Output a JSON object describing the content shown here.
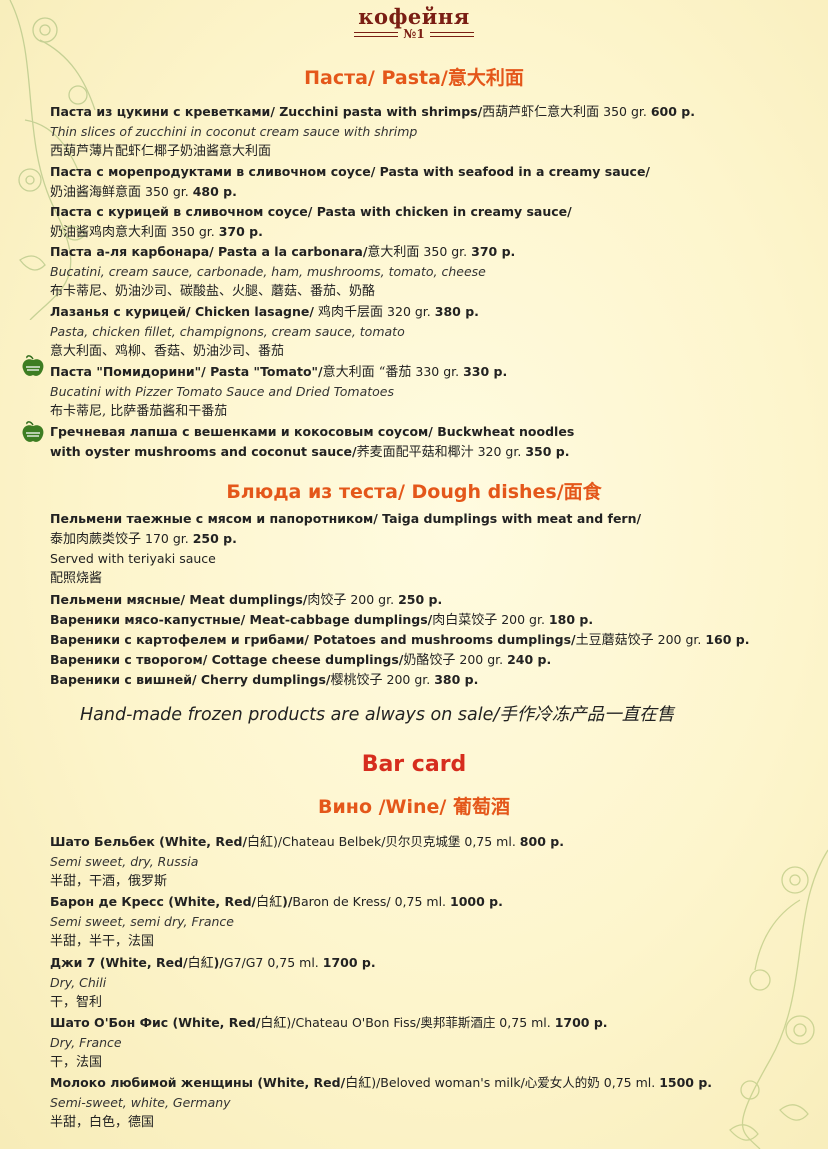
{
  "logo": {
    "word": "кофейня",
    "number": "№1"
  },
  "pasta": {
    "title": "Паста/ Pasta/意大利面",
    "items": [
      {
        "head": "Паста из цукини с креветками/ Zucchini pasta with shrimps/",
        "head_cn": "西葫芦虾仁意大利面",
        "weight": " 350 gr. ",
        "price": "600 р.",
        "desc": "Thin slices of zucchini in coconut cream sauce with shrimp",
        "cn": "西葫芦薄片配虾仁椰子奶油酱意大利面"
      },
      {
        "head": "Паста с морепродуктами в сливочном соусе/ Pasta with seafood in a creamy sauce/",
        "head_cn": "奶油酱海鲜意面",
        "weight": " 350 gr. ",
        "price": "480 р."
      },
      {
        "head": "Паста с курицей в сливочном соусе/ Pasta with chicken in creamy sauce/",
        "head_cn": "奶油酱鸡肉意大利面",
        "weight": " 350 gr. ",
        "price": "370 р."
      },
      {
        "head": "Паста а-ля карбонара/ Pasta a la carbonara/",
        "head_cn": "意大利面",
        "weight": " 350 gr. ",
        "price": "370 р.",
        "desc": "Bucatini, cream sauce, carbonade, ham, mushrooms, tomato, cheese",
        "cn": "布卡蒂尼、奶油沙司、碳酸盐、火腿、蘑菇、番茄、奶酪"
      },
      {
        "head": "Лазанья с курицей/ Chicken lasagne/",
        "head_cn": " 鸡肉千层面",
        "weight": " 320 gr. ",
        "price": "380 р.",
        "desc": "Pasta, chicken fillet, champignons, cream sauce, tomato",
        "cn": "意大利面、鸡柳、香菇、奶油沙司、番茄"
      },
      {
        "head": "Паста \"Помидорини\"/ Pasta \"Tomato\"/",
        "head_cn": "意大利面 “番茄",
        "weight": " 330 gr. ",
        "price": "330 р.",
        "desc": "Bucatini with Pizzer Tomato Sauce and Dried Tomatoes",
        "cn": "布卡蒂尼, 比萨番茄酱和干番茄"
      },
      {
        "head": "Гречневая лапша с вешенками и кокосовым соусом/ Buckwheat noodles",
        "head2": " with oyster mushrooms and coconut sauce/",
        "head_cn": "荞麦面配平菇和椰汁",
        "weight": " 320 gr. ",
        "price": "350 р."
      }
    ]
  },
  "dough": {
    "title": "Блюда из теста/ Dough dishes/面食",
    "items": [
      {
        "head": "Пельмени таежные с мясом и папоротником/ Taiga dumplings with meat and fern/",
        "cn_line": "泰加肉蕨类饺子",
        "weight": " 170 gr. ",
        "price": "250 р.",
        "desc": "Served with teriyaki sauce",
        "cn": "配照烧酱"
      },
      {
        "head": "Пельмени мясные/ Meat dumplings/",
        "head_cn": "肉饺子",
        "weight": " 200 gr. ",
        "price": "250 р."
      },
      {
        "head": "Вареники мясо-капустные/ Meat-cabbage dumplings/",
        "head_cn": "肉白菜饺子",
        "weight": " 200 gr. ",
        "price": "180 р."
      },
      {
        "head": "Вареники с картофелем и грибами/ Potatoes and mushrooms dumplings/",
        "head_cn": "土豆蘑菇饺子",
        "weight": " 200 gr. ",
        "price": "160 р."
      },
      {
        "head": "Вареники с творогом/ Cottage cheese dumplings/",
        "head_cn": "奶酪饺子",
        "weight": " 200 gr. ",
        "price": "240 р."
      },
      {
        "head": "Вареники с вишней/ Cherry dumplings/",
        "head_cn": "樱桃饺子",
        "weight": " 200 gr. ",
        "price": "380 р."
      }
    ],
    "note": "Hand-made frozen products are always on sale/手作冷冻产品一直在售"
  },
  "bar": {
    "title": "Bar card",
    "wine_title": "Вино /Wine/ 葡萄酒",
    "items": [
      {
        "head": "Шато Бельбек (White, Red/",
        "head_cn": "白紅",
        "tail": ")/Chateau Belbek/贝尔贝克城堡 0,75 ml. ",
        "price": "800 р.",
        "desc": "Semi sweet, dry, Russia",
        "cn": "半甜，干酒，俄罗斯"
      },
      {
        "head": "Барон де Кресс (White, Red/",
        "head_cn": "白紅",
        "head_end": ")/",
        "tail": "Baron de Kress/ 0,75 ml. ",
        "price": "1000 р.",
        "desc": "Semi sweet, semi dry, France",
        "cn": "半甜，半干，法国"
      },
      {
        "head": "Джи 7 (White, Red/",
        "head_cn": "白紅",
        "head_end": ")/",
        "tail": "G7/G7 0,75 ml. ",
        "price": "1700 р.",
        "desc": "Dry, Chili",
        "cn": "干，智利"
      },
      {
        "head": "Шато О'Бон Фис (White, Red/",
        "head_cn": "白紅",
        "tail": ")/Chateau O'Bon Fiss/奥邦菲斯酒庄 0,75 ml. ",
        "price": "1700 р.",
        "desc": "Dry, France",
        "cn": "干，法国"
      },
      {
        "head": "Молоко любимой женщины (White, Red/",
        "head_cn": "白紅",
        "tail": ")/Beloved woman's milk/心爱女人的奶 0,75 ml. ",
        "price": "1500 р.",
        "desc": "Semi-sweet, white, Germany",
        "cn": "半甜，白色，德国"
      }
    ]
  },
  "icons": {
    "vegetarian": "veg-apple-icon",
    "floral": "floral-corner-decoration"
  },
  "colors": {
    "section": "#e4571a",
    "bar": "#d62d1e",
    "logo": "#7a1e14",
    "veg": "#2f6b1c"
  }
}
